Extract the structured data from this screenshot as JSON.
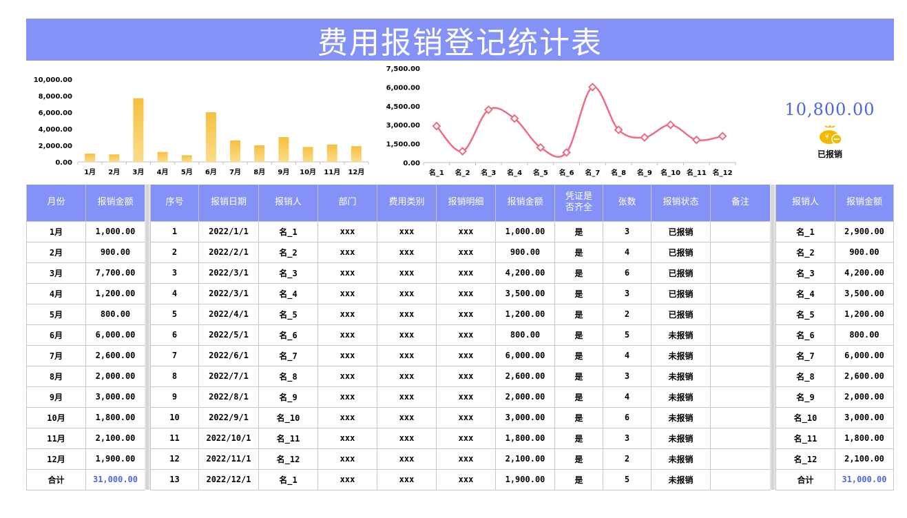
{
  "header": {
    "title": "费用报销登记统计表"
  },
  "kpi": {
    "value": "10,800.00",
    "icon": "money-bag-icon",
    "label": "已报销",
    "color": "#4d64e6"
  },
  "colors": {
    "header_bg": "#8492f8",
    "bar": "#f7c242",
    "line": "#ee6b82",
    "total": "#4d64e6"
  },
  "chart_data": [
    {
      "type": "bar",
      "title": "",
      "categories": [
        "1月",
        "2月",
        "3月",
        "4月",
        "5月",
        "6月",
        "7月",
        "8月",
        "9月",
        "10月",
        "11月",
        "12月"
      ],
      "values": [
        1000,
        900,
        7700,
        1200,
        800,
        6000,
        2600,
        2000,
        3000,
        1800,
        2100,
        1900
      ],
      "yticks": [
        "0.00",
        "2,000.00",
        "4,000.00",
        "6,000.00",
        "8,000.00",
        "10,000.00"
      ],
      "ylim": [
        0,
        10000
      ],
      "grid": false,
      "legend": "none"
    },
    {
      "type": "line",
      "title": "",
      "categories": [
        "名_1",
        "名_2",
        "名_3",
        "名_4",
        "名_5",
        "名_6",
        "名_7",
        "名_8",
        "名_9",
        "名_10",
        "名_11",
        "名_12"
      ],
      "values": [
        2900,
        900,
        4200,
        3500,
        1200,
        800,
        6000,
        2600,
        2000,
        3000,
        1800,
        2100
      ],
      "yticks": [
        "0.00",
        "1,500.00",
        "3,000.00",
        "4,500.00",
        "6,000.00",
        "7,500.00"
      ],
      "ylim": [
        0,
        7500
      ],
      "grid": false,
      "legend": "none",
      "marker": "diamond",
      "smooth": true
    }
  ],
  "monthly": {
    "headers": [
      "月份",
      "报销金额"
    ],
    "rows": [
      [
        "1月",
        "1,000.00"
      ],
      [
        "2月",
        "900.00"
      ],
      [
        "3月",
        "7,700.00"
      ],
      [
        "4月",
        "1,200.00"
      ],
      [
        "5月",
        "800.00"
      ],
      [
        "6月",
        "6,000.00"
      ],
      [
        "7月",
        "2,600.00"
      ],
      [
        "8月",
        "2,000.00"
      ],
      [
        "9月",
        "3,000.00"
      ],
      [
        "10月",
        "1,800.00"
      ],
      [
        "11月",
        "2,100.00"
      ],
      [
        "12月",
        "1,900.00"
      ]
    ],
    "total": [
      "合计",
      "31,000.00"
    ]
  },
  "records": {
    "headers": [
      "序号",
      "报销日期",
      "报销人",
      "部门",
      "费用类别",
      "报销明细",
      "报销金额",
      "凭证是\n否齐全",
      "张数",
      "报销状态",
      "备注"
    ],
    "rows": [
      [
        "1",
        "2022/1/1",
        "名_1",
        "xxx",
        "xxx",
        "xxx",
        "1,000.00",
        "是",
        "3",
        "已报销",
        ""
      ],
      [
        "2",
        "2022/2/1",
        "名_2",
        "xxx",
        "xxx",
        "xxx",
        "900.00",
        "是",
        "4",
        "已报销",
        ""
      ],
      [
        "3",
        "2022/3/1",
        "名_3",
        "xxx",
        "xxx",
        "xxx",
        "4,200.00",
        "是",
        "6",
        "已报销",
        ""
      ],
      [
        "4",
        "2022/3/1",
        "名_4",
        "xxx",
        "xxx",
        "xxx",
        "3,500.00",
        "是",
        "3",
        "已报销",
        ""
      ],
      [
        "5",
        "2022/4/1",
        "名_5",
        "xxx",
        "xxx",
        "xxx",
        "1,200.00",
        "是",
        "2",
        "已报销",
        ""
      ],
      [
        "6",
        "2022/5/1",
        "名_6",
        "xxx",
        "xxx",
        "xxx",
        "800.00",
        "是",
        "5",
        "未报销",
        ""
      ],
      [
        "7",
        "2022/6/1",
        "名_7",
        "xxx",
        "xxx",
        "xxx",
        "6,000.00",
        "是",
        "4",
        "未报销",
        ""
      ],
      [
        "8",
        "2022/7/1",
        "名_8",
        "xxx",
        "xxx",
        "xxx",
        "2,600.00",
        "是",
        "3",
        "未报销",
        ""
      ],
      [
        "9",
        "2022/8/1",
        "名_9",
        "xxx",
        "xxx",
        "xxx",
        "2,000.00",
        "是",
        "4",
        "未报销",
        ""
      ],
      [
        "10",
        "2022/9/1",
        "名_10",
        "xxx",
        "xxx",
        "xxx",
        "3,000.00",
        "是",
        "6",
        "未报销",
        ""
      ],
      [
        "11",
        "2022/10/1",
        "名_11",
        "xxx",
        "xxx",
        "xxx",
        "1,800.00",
        "是",
        "3",
        "未报销",
        ""
      ],
      [
        "12",
        "2022/11/1",
        "名_12",
        "xxx",
        "xxx",
        "xxx",
        "2,100.00",
        "是",
        "2",
        "未报销",
        ""
      ],
      [
        "13",
        "2022/12/1",
        "名_1",
        "xxx",
        "xxx",
        "xxx",
        "1,900.00",
        "是",
        "5",
        "未报销",
        ""
      ]
    ]
  },
  "by_person": {
    "headers": [
      "报销人",
      "报销金额"
    ],
    "rows": [
      [
        "名_1",
        "2,900.00"
      ],
      [
        "名_2",
        "900.00"
      ],
      [
        "名_3",
        "4,200.00"
      ],
      [
        "名_4",
        "3,500.00"
      ],
      [
        "名_5",
        "1,200.00"
      ],
      [
        "名_6",
        "800.00"
      ],
      [
        "名_7",
        "6,000.00"
      ],
      [
        "名_8",
        "2,600.00"
      ],
      [
        "名_9",
        "2,000.00"
      ],
      [
        "名_10",
        "3,000.00"
      ],
      [
        "名_11",
        "1,800.00"
      ],
      [
        "名_12",
        "2,100.00"
      ]
    ],
    "total": [
      "合计",
      "31,000.00"
    ]
  }
}
